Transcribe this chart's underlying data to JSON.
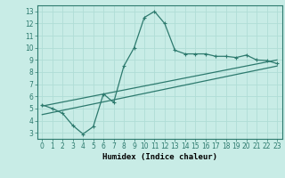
{
  "title": "",
  "xlabel": "Humidex (Indice chaleur)",
  "bg_color": "#c8ece6",
  "line_color": "#2d7a6e",
  "grid_color": "#b0ddd6",
  "xlim": [
    -0.5,
    23.5
  ],
  "ylim": [
    2.5,
    13.5
  ],
  "xticks": [
    0,
    1,
    2,
    3,
    4,
    5,
    6,
    7,
    8,
    9,
    10,
    11,
    12,
    13,
    14,
    15,
    16,
    17,
    18,
    19,
    20,
    21,
    22,
    23
  ],
  "yticks": [
    3,
    4,
    5,
    6,
    7,
    8,
    9,
    10,
    11,
    12,
    13
  ],
  "line1_x": [
    0,
    1,
    2,
    3,
    4,
    5,
    6,
    7,
    8,
    9,
    10,
    11,
    12,
    13,
    14,
    15,
    16,
    17,
    18,
    19,
    20,
    21,
    22,
    23
  ],
  "line1_y": [
    5.3,
    5.0,
    4.6,
    3.6,
    2.9,
    3.5,
    6.2,
    5.5,
    8.5,
    10.0,
    12.5,
    13.0,
    12.0,
    9.8,
    9.5,
    9.5,
    9.5,
    9.3,
    9.3,
    9.2,
    9.4,
    9.0,
    8.95,
    8.7
  ],
  "line2_x": [
    0,
    23
  ],
  "line2_y": [
    4.5,
    8.5
  ],
  "line3_x": [
    0,
    23
  ],
  "line3_y": [
    5.2,
    9.0
  ],
  "line1_lw": 0.9,
  "line2_lw": 0.9,
  "line3_lw": 0.9,
  "marker": "+",
  "markersize": 3,
  "tick_fontsize": 5.5,
  "xlabel_fontsize": 6.5
}
